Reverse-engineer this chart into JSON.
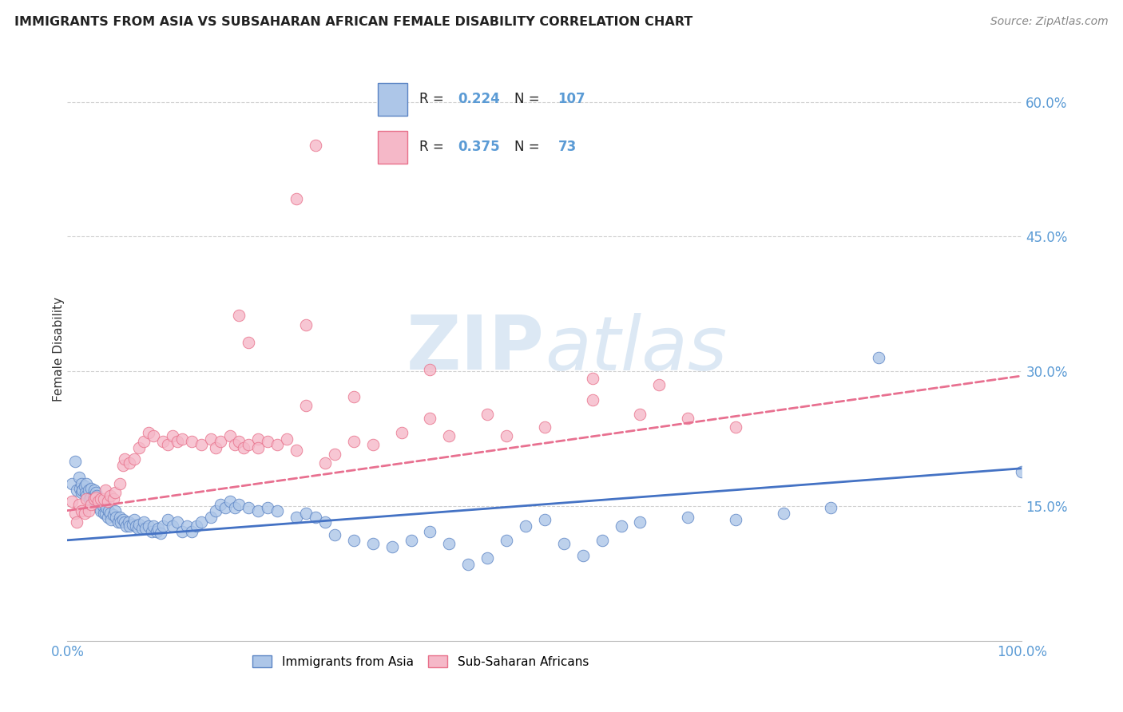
{
  "title": "IMMIGRANTS FROM ASIA VS SUBSAHARAN AFRICAN FEMALE DISABILITY CORRELATION CHART",
  "source": "Source: ZipAtlas.com",
  "ylabel": "Female Disability",
  "watermark_zip": "ZIP",
  "watermark_atlas": "atlas",
  "blue_R": 0.224,
  "blue_N": 107,
  "pink_R": 0.375,
  "pink_N": 73,
  "blue_label": "Immigrants from Asia",
  "pink_label": "Sub-Saharan Africans",
  "blue_fill": "#adc6e8",
  "blue_edge": "#5b84c4",
  "pink_fill": "#f5b8c8",
  "pink_edge": "#e8708a",
  "blue_line_color": "#4472c4",
  "pink_line_color": "#e87090",
  "grid_color": "#d0d0d0",
  "label_color": "#5b9bd5",
  "title_color": "#222222",
  "source_color": "#888888",
  "blue_trend_x": [
    0.0,
    1.0
  ],
  "blue_trend_y": [
    0.112,
    0.192
  ],
  "pink_trend_x": [
    0.0,
    1.0
  ],
  "pink_trend_y": [
    0.145,
    0.295
  ],
  "xlim": [
    0.0,
    1.0
  ],
  "ylim": [
    0.0,
    0.65
  ],
  "ytick_vals": [
    0.15,
    0.3,
    0.45,
    0.6
  ],
  "ytick_labels": [
    "15.0%",
    "30.0%",
    "45.0%",
    "60.0%"
  ],
  "xtick_vals": [
    0.0,
    0.25,
    0.5,
    0.75,
    1.0
  ],
  "xtick_labels": [
    "0.0%",
    "",
    "",
    "",
    "100.0%"
  ],
  "blue_x": [
    0.005,
    0.008,
    0.01,
    0.012,
    0.013,
    0.015,
    0.015,
    0.016,
    0.018,
    0.019,
    0.02,
    0.02,
    0.022,
    0.023,
    0.025,
    0.025,
    0.027,
    0.028,
    0.028,
    0.03,
    0.03,
    0.031,
    0.032,
    0.033,
    0.035,
    0.035,
    0.037,
    0.038,
    0.04,
    0.04,
    0.041,
    0.042,
    0.043,
    0.045,
    0.046,
    0.048,
    0.05,
    0.051,
    0.053,
    0.055,
    0.056,
    0.058,
    0.06,
    0.062,
    0.064,
    0.065,
    0.068,
    0.07,
    0.072,
    0.074,
    0.075,
    0.078,
    0.08,
    0.082,
    0.085,
    0.088,
    0.09,
    0.093,
    0.095,
    0.098,
    0.1,
    0.105,
    0.11,
    0.115,
    0.12,
    0.125,
    0.13,
    0.135,
    0.14,
    0.15,
    0.155,
    0.16,
    0.165,
    0.17,
    0.175,
    0.18,
    0.19,
    0.2,
    0.21,
    0.22,
    0.24,
    0.25,
    0.26,
    0.27,
    0.28,
    0.3,
    0.32,
    0.34,
    0.36,
    0.38,
    0.4,
    0.42,
    0.44,
    0.46,
    0.48,
    0.5,
    0.52,
    0.54,
    0.56,
    0.58,
    0.6,
    0.65,
    0.7,
    0.75,
    0.8,
    0.85,
    1.0
  ],
  "blue_y": [
    0.175,
    0.2,
    0.168,
    0.182,
    0.17,
    0.165,
    0.175,
    0.168,
    0.172,
    0.165,
    0.175,
    0.162,
    0.168,
    0.158,
    0.17,
    0.16,
    0.162,
    0.168,
    0.155,
    0.165,
    0.155,
    0.162,
    0.155,
    0.148,
    0.155,
    0.145,
    0.15,
    0.142,
    0.152,
    0.142,
    0.148,
    0.138,
    0.145,
    0.142,
    0.135,
    0.14,
    0.145,
    0.138,
    0.132,
    0.138,
    0.132,
    0.135,
    0.132,
    0.128,
    0.132,
    0.128,
    0.13,
    0.135,
    0.128,
    0.125,
    0.13,
    0.125,
    0.132,
    0.125,
    0.128,
    0.122,
    0.128,
    0.122,
    0.125,
    0.12,
    0.128,
    0.135,
    0.128,
    0.132,
    0.122,
    0.128,
    0.122,
    0.128,
    0.132,
    0.138,
    0.145,
    0.152,
    0.148,
    0.155,
    0.148,
    0.152,
    0.148,
    0.145,
    0.148,
    0.145,
    0.138,
    0.142,
    0.138,
    0.132,
    0.118,
    0.112,
    0.108,
    0.105,
    0.112,
    0.122,
    0.108,
    0.085,
    0.092,
    0.112,
    0.128,
    0.135,
    0.108,
    0.095,
    0.112,
    0.128,
    0.132,
    0.138,
    0.135,
    0.142,
    0.148,
    0.315,
    0.188
  ],
  "pink_x": [
    0.005,
    0.008,
    0.01,
    0.012,
    0.015,
    0.018,
    0.02,
    0.022,
    0.025,
    0.028,
    0.03,
    0.032,
    0.035,
    0.038,
    0.04,
    0.042,
    0.045,
    0.048,
    0.05,
    0.055,
    0.058,
    0.06,
    0.065,
    0.07,
    0.075,
    0.08,
    0.085,
    0.09,
    0.1,
    0.105,
    0.11,
    0.115,
    0.12,
    0.13,
    0.14,
    0.15,
    0.155,
    0.16,
    0.17,
    0.175,
    0.18,
    0.185,
    0.19,
    0.2,
    0.21,
    0.22,
    0.23,
    0.24,
    0.25,
    0.27,
    0.28,
    0.3,
    0.32,
    0.35,
    0.38,
    0.4,
    0.44,
    0.46,
    0.5,
    0.55,
    0.6,
    0.65,
    0.7,
    0.18,
    0.19,
    0.3,
    0.38,
    0.55,
    0.62,
    0.24,
    0.25,
    0.26,
    0.2
  ],
  "pink_y": [
    0.155,
    0.142,
    0.132,
    0.152,
    0.145,
    0.142,
    0.158,
    0.145,
    0.152,
    0.158,
    0.16,
    0.155,
    0.158,
    0.158,
    0.168,
    0.155,
    0.162,
    0.158,
    0.165,
    0.175,
    0.195,
    0.202,
    0.198,
    0.202,
    0.215,
    0.222,
    0.232,
    0.228,
    0.222,
    0.218,
    0.228,
    0.222,
    0.225,
    0.222,
    0.218,
    0.225,
    0.215,
    0.222,
    0.228,
    0.218,
    0.222,
    0.215,
    0.218,
    0.225,
    0.222,
    0.218,
    0.225,
    0.212,
    0.262,
    0.198,
    0.208,
    0.222,
    0.218,
    0.232,
    0.248,
    0.228,
    0.252,
    0.228,
    0.238,
    0.268,
    0.252,
    0.248,
    0.238,
    0.362,
    0.332,
    0.272,
    0.302,
    0.292,
    0.285,
    0.492,
    0.352,
    0.552,
    0.215
  ]
}
